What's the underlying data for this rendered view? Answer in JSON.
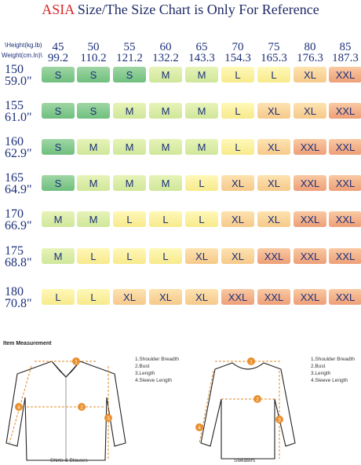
{
  "title": {
    "prefix": "ASIA",
    "rest": " Size/The Size Chart is Only For Reference"
  },
  "header": {
    "weight_label": "\\Height(kg.lb)",
    "height_label": "Weight(cm.In)\\",
    "weights_kg": [
      "45",
      "50",
      "55",
      "60",
      "65",
      "70",
      "75",
      "80",
      "85"
    ],
    "weights_lb": [
      "99.2",
      "110.2",
      "121.2",
      "132.2",
      "143.3",
      "154.3",
      "165.3",
      "176.3",
      "187.3"
    ]
  },
  "rows": [
    {
      "cm": "150",
      "in": "59.0\"",
      "sizes": [
        "S",
        "S",
        "S",
        "M",
        "M",
        "L",
        "L",
        "XL",
        "XXL"
      ]
    },
    {
      "cm": "155",
      "in": "61.0\"",
      "sizes": [
        "S",
        "S",
        "M",
        "M",
        "M",
        "L",
        "XL",
        "XL",
        "XXL"
      ]
    },
    {
      "cm": "160",
      "in": "62.9\"",
      "sizes": [
        "S",
        "M",
        "M",
        "M",
        "M",
        "L",
        "XL",
        "XXL",
        "XXL"
      ]
    },
    {
      "cm": "165",
      "in": "64.9\"",
      "sizes": [
        "S",
        "M",
        "M",
        "M",
        "L",
        "XL",
        "XL",
        "XXL",
        "XXL"
      ]
    },
    {
      "cm": "170",
      "in": "66.9\"",
      "sizes": [
        "M",
        "M",
        "L",
        "L",
        "L",
        "XL",
        "XL",
        "XXL",
        "XXL"
      ]
    },
    {
      "cm": "175",
      "in": "68.8\"",
      "sizes": [
        "M",
        "L",
        "L",
        "L",
        "XL",
        "XL",
        "XXL",
        "XXL",
        "XXL"
      ]
    },
    {
      "cm": "180",
      "in": "70.8\"",
      "sizes": [
        "L",
        "L",
        "XL",
        "XL",
        "XL",
        "XXL",
        "XXL",
        "XXL",
        "XXL"
      ]
    }
  ],
  "size_colors": {
    "S": "#7fc78b",
    "M": "#d9ec9f",
    "L": "#f9ee98",
    "XL": "#f8d39a",
    "XXL": "#f2ae86"
  },
  "measurement": {
    "title": "Item Measurement",
    "items": [
      "1.Shoulder Breadth",
      "2.Bust",
      "3.Length",
      "4.Sleeve Length"
    ],
    "markers": [
      "1",
      "2",
      "3",
      "4"
    ],
    "shirt_caption": "Shirts & Blouses",
    "sweater_caption": "Sweaters"
  }
}
